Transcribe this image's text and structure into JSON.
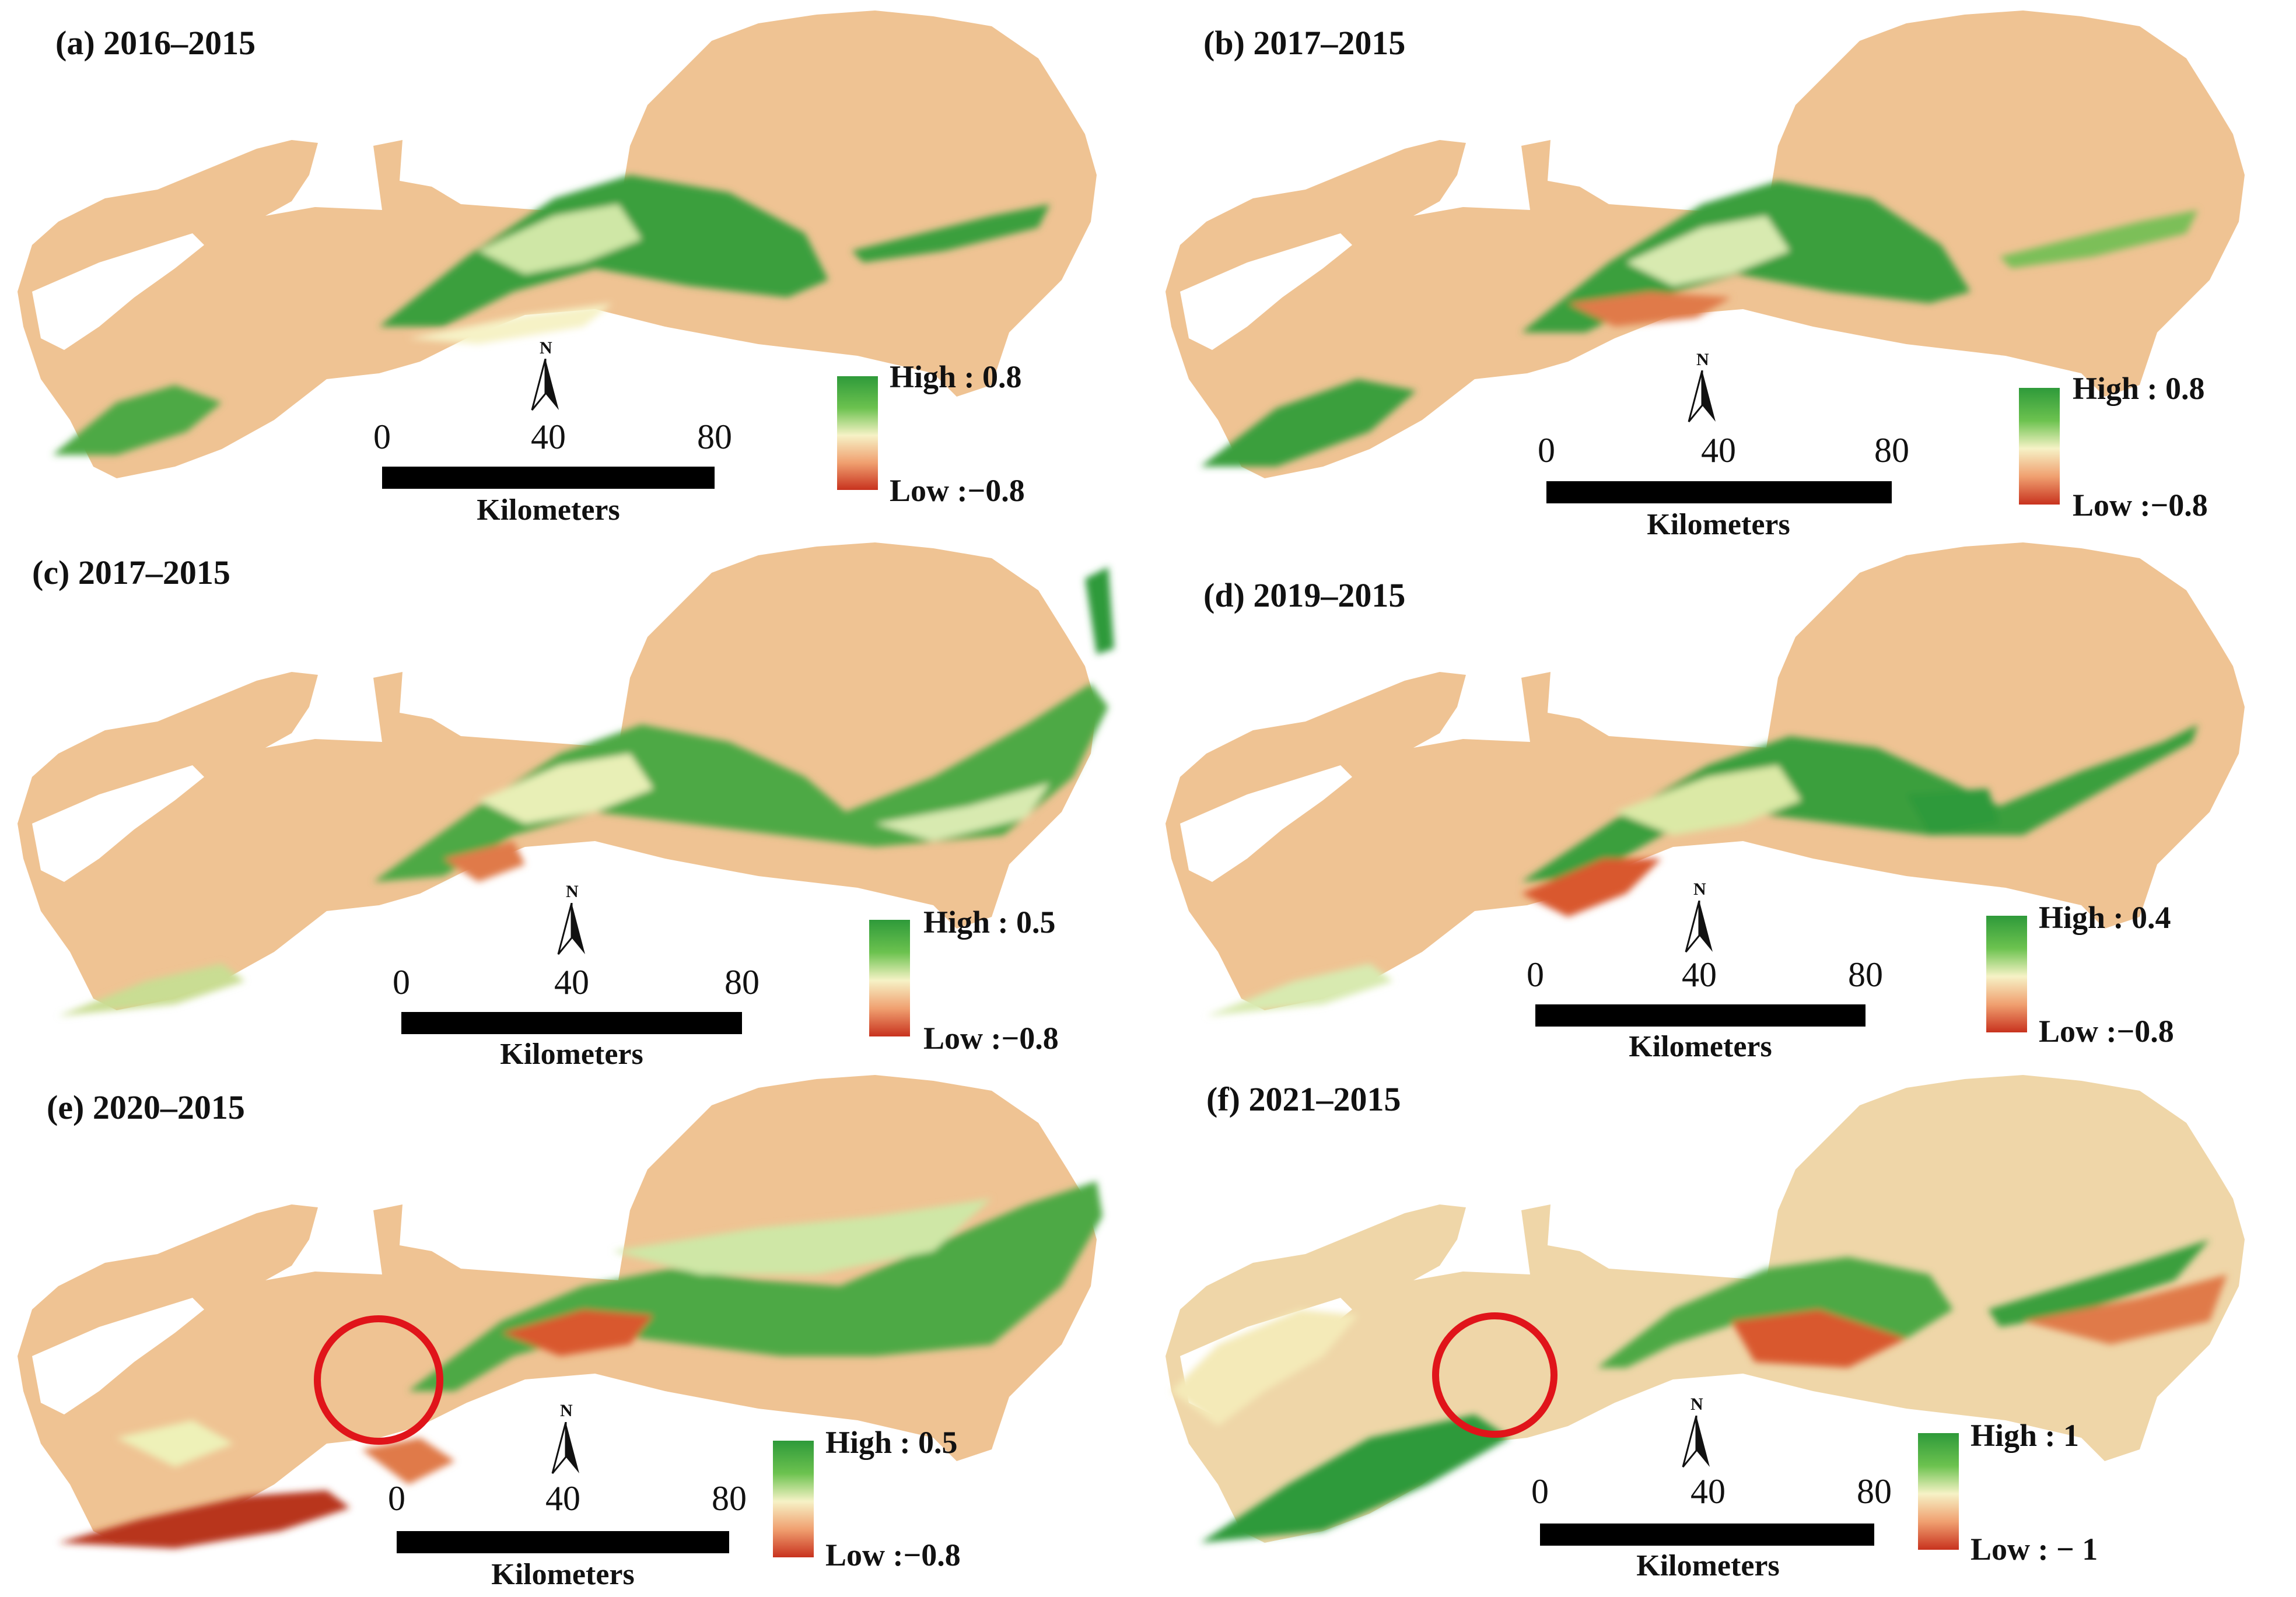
{
  "scale_unit": "Kilometers",
  "north_symbol": "N",
  "scale_ticks": [
    "0",
    "40",
    "80"
  ],
  "colors": {
    "land": "#efc393",
    "high": "#2e9a3a",
    "mid": "#f6f2c6",
    "low": "#c8321e",
    "highlight_circle": "#e0141a"
  },
  "panels": [
    {
      "title": "(a)  2016–2015",
      "legend_high": "High : 0.8",
      "legend_low": "Low :−0.8"
    },
    {
      "title": "(b) 2017–2015",
      "legend_high": "High : 0.8",
      "legend_low": "Low :−0.8"
    },
    {
      "title": "(c)  2017–2015",
      "legend_high": "High : 0.5",
      "legend_low": "Low :−0.8"
    },
    {
      "title": "(d) 2019–2015",
      "legend_high": "High : 0.4",
      "legend_low": "Low :−0.8"
    },
    {
      "title": "(e) 2020–2015",
      "legend_high": "High : 0.5",
      "legend_low": "Low :−0.8"
    },
    {
      "title": "(f)  2021–2015",
      "legend_high": "High :    1",
      "legend_low": "Low : − 1"
    }
  ]
}
